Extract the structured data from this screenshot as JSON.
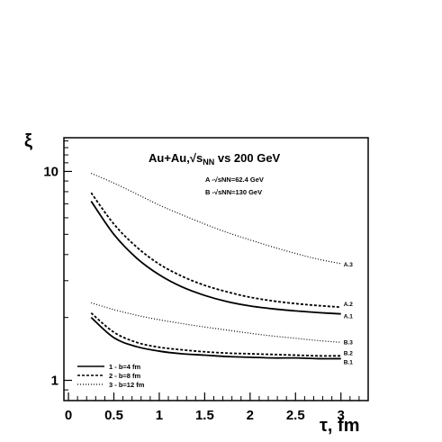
{
  "chart_data": {
    "type": "line",
    "title": "Au+Au,√sNN vs 200 GeV",
    "annotations": [
      "A -√sNN=62.4 GeV",
      "B -√sNN=130 GeV"
    ],
    "xlabel": "τ, fm",
    "ylabel": "ξ",
    "xlim": [
      -0.05,
      3.3
    ],
    "ylim": [
      0.8,
      14.5
    ],
    "yscale": "log",
    "grid": false,
    "legend_position": "bottom-left",
    "xticks": [
      "0",
      "0.5",
      "1",
      "1.5",
      "2",
      "2.5",
      "3"
    ],
    "yticks": [
      "1",
      "10"
    ],
    "x": [
      0.25,
      0.5,
      0.75,
      1.0,
      1.25,
      1.5,
      1.75,
      2.0,
      2.25,
      2.5,
      2.75,
      3.0
    ],
    "legend": [
      {
        "label": "1 - b=4 fm",
        "style": "solid"
      },
      {
        "label": "2 - b=8 fm",
        "style": "dashed"
      },
      {
        "label": "3 - b=12 fm",
        "style": "dotted"
      }
    ],
    "series": [
      {
        "name": "A.3",
        "style": "dotted",
        "values": [
          9.8,
          8.8,
          7.8,
          6.9,
          6.2,
          5.6,
          5.1,
          4.7,
          4.35,
          4.05,
          3.8,
          3.62
        ]
      },
      {
        "name": "A.2",
        "style": "dashed",
        "values": [
          7.9,
          5.6,
          4.35,
          3.6,
          3.15,
          2.85,
          2.65,
          2.5,
          2.4,
          2.33,
          2.28,
          2.24
        ]
      },
      {
        "name": "A.1",
        "style": "solid",
        "values": [
          7.2,
          5.0,
          3.85,
          3.2,
          2.8,
          2.55,
          2.38,
          2.27,
          2.2,
          2.15,
          2.11,
          2.08
        ]
      },
      {
        "name": "B.3",
        "style": "dotted",
        "values": [
          2.35,
          2.18,
          2.05,
          1.95,
          1.87,
          1.8,
          1.74,
          1.68,
          1.63,
          1.59,
          1.55,
          1.52
        ]
      },
      {
        "name": "B.2",
        "style": "dashed",
        "values": [
          2.1,
          1.7,
          1.52,
          1.44,
          1.4,
          1.37,
          1.35,
          1.34,
          1.33,
          1.32,
          1.31,
          1.31
        ]
      },
      {
        "name": "B.1",
        "style": "solid",
        "values": [
          2.0,
          1.6,
          1.45,
          1.38,
          1.34,
          1.32,
          1.3,
          1.29,
          1.28,
          1.28,
          1.27,
          1.27
        ]
      }
    ]
  }
}
